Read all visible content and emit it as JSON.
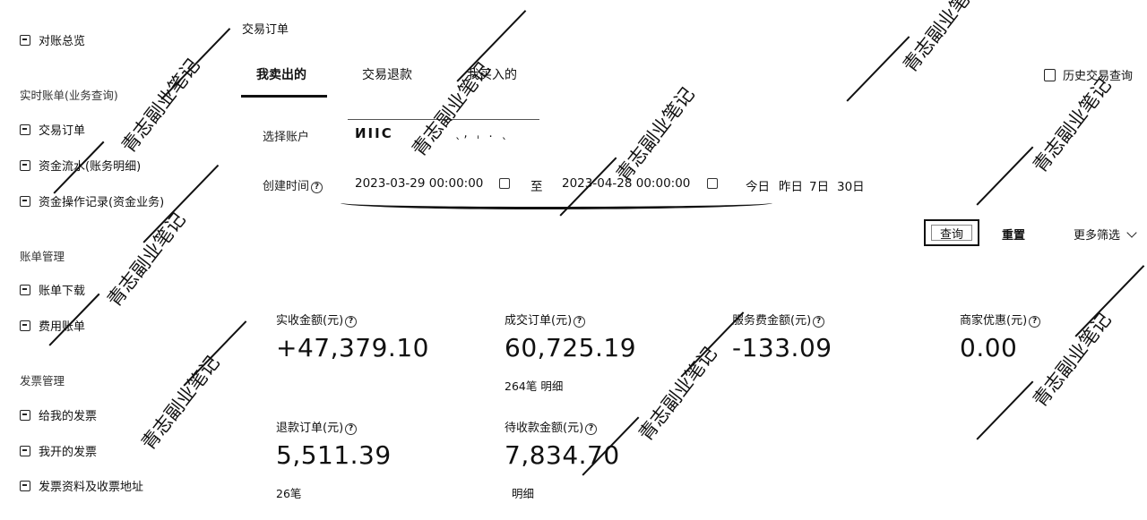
{
  "sidebar": {
    "top_item": "对账总览",
    "groups": [
      {
        "title": "实时账单(业务查询)",
        "items": [
          "交易订单",
          "资金流水(账务明细)",
          "资金操作记录(资金业务)"
        ]
      },
      {
        "title": "账单管理",
        "items": [
          "账单下载",
          "费用账单"
        ]
      },
      {
        "title": "发票管理",
        "items": [
          "给我的发票",
          "我开的发票",
          "发票资料及收票地址"
        ]
      }
    ]
  },
  "main": {
    "title": "交易订单",
    "tabs": [
      {
        "label": "我卖出的",
        "active": true
      },
      {
        "label": "交易退款",
        "active": false
      },
      {
        "label": "我买入的",
        "active": false
      }
    ],
    "history_link": "历史交易查询"
  },
  "filters": {
    "account_label": "选择账户",
    "account_value_main": "ИIIC",
    "account_value_secondary": "ˎ, ˌ . ˎ",
    "time_label": "创建时间",
    "start_time": "2023-03-29 00:00:00",
    "separator": "至",
    "end_time": "2023-04-28 00:00:00",
    "quick_ranges": [
      "今日",
      "昨日",
      "7日",
      "30日"
    ],
    "query_button": "查询",
    "reset_button": "重置",
    "more_filters": "更多筛选"
  },
  "stats": {
    "received": {
      "label": "实收金额(元)",
      "value": "+47,379.10"
    },
    "deal": {
      "label": "成交订单(元)",
      "value": "60,725.19",
      "sub": "264笔 明细"
    },
    "service_fee": {
      "label": "服务费金额(元)",
      "value": "-133.09"
    },
    "merchant_discount": {
      "label": "商家优惠(元)",
      "value": "0.00"
    },
    "refund": {
      "label": "退款订单(元)",
      "value": "5,511.39",
      "sub": "26笔"
    },
    "pending": {
      "label": "待收款金额(元)",
      "value": "7,834.70",
      "sub": "明细"
    }
  },
  "watermark": {
    "text": "青志副业笔记"
  },
  "icons": {
    "sidebar": "document-icon",
    "history": "history-icon",
    "calendar": "calendar-icon",
    "help": "help-icon",
    "chevron": "chevron-down-icon"
  }
}
